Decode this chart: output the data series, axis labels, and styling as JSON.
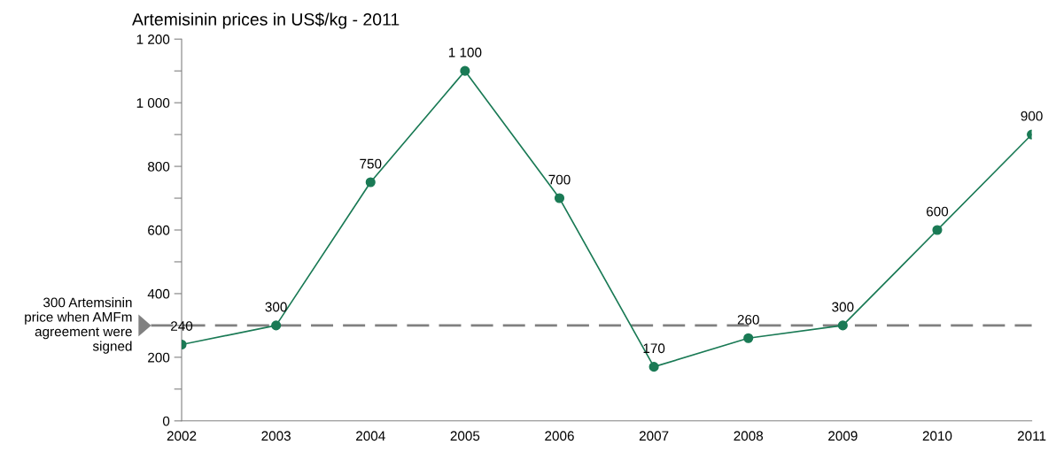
{
  "chart_data": {
    "type": "line",
    "title": "Artemisinin prices in US$/kg - 2011",
    "categories": [
      "2002",
      "2003",
      "2004",
      "2005",
      "2006",
      "2007",
      "2008",
      "2009",
      "2010",
      "2011"
    ],
    "series": [
      {
        "color": "#1a7a55",
        "values": [
          240,
          300,
          750,
          1100,
          700,
          170,
          260,
          300,
          600,
          900
        ]
      }
    ],
    "value_labels": [
      "240",
      "300",
      "750",
      "1 100",
      "700",
      "170",
      "260",
      "300",
      "600",
      "900"
    ],
    "ylim": [
      0,
      1200
    ],
    "yticks": [
      0,
      {
        "value": 100,
        "label": null
      },
      200,
      {
        "value": 300,
        "label": null
      },
      400,
      {
        "value": 500,
        "label": null
      },
      600,
      {
        "value": 700,
        "label": null
      },
      800,
      {
        "value": 900,
        "label": null
      },
      {
        "value": 1000,
        "label": "1 000"
      },
      {
        "value": 1100,
        "label": null
      },
      {
        "value": 1200,
        "label": "1 200"
      }
    ],
    "ref_lines": [
      {
        "axis": "y",
        "value": 300,
        "label": "300 Artemsinin\nprice when AMFm\nagreement were\nsigned",
        "color": "#808080",
        "line_style": "dashed"
      }
    ],
    "marker": "circle",
    "line_style": "solid",
    "grid": false,
    "legend": false
  }
}
